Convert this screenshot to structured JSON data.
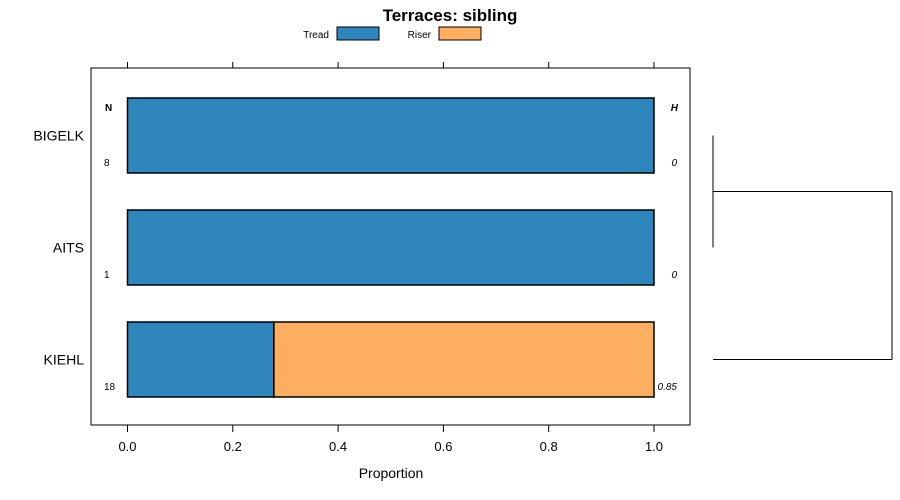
{
  "chart_data": {
    "type": "bar",
    "orientation": "horizontal",
    "stacked": true,
    "title": "Terraces: sibling",
    "xlabel": "Proportion",
    "ylabel": "",
    "xlim": [
      -0.07,
      1.07
    ],
    "x_ticks": [
      "0.0",
      "0.2",
      "0.4",
      "0.6",
      "0.8",
      "1.0"
    ],
    "x_tick_values": [
      0.0,
      0.2,
      0.4,
      0.6,
      0.8,
      1.0
    ],
    "categories": [
      "BIGELK",
      "AITS",
      "KIEHL"
    ],
    "series": [
      {
        "name": "Tread",
        "color": "#2e86bc",
        "values": [
          1.0,
          1.0,
          0.278
        ]
      },
      {
        "name": "Riser",
        "color": "#fdae61",
        "values": [
          0.0,
          0.0,
          0.722
        ]
      }
    ],
    "annotations": {
      "n_header": "N",
      "h_header": "H",
      "n_values": [
        "8",
        "1",
        "18"
      ],
      "h_values": [
        "0",
        "0",
        "0.85"
      ]
    },
    "legend_position": "top",
    "dendrogram": "right"
  }
}
